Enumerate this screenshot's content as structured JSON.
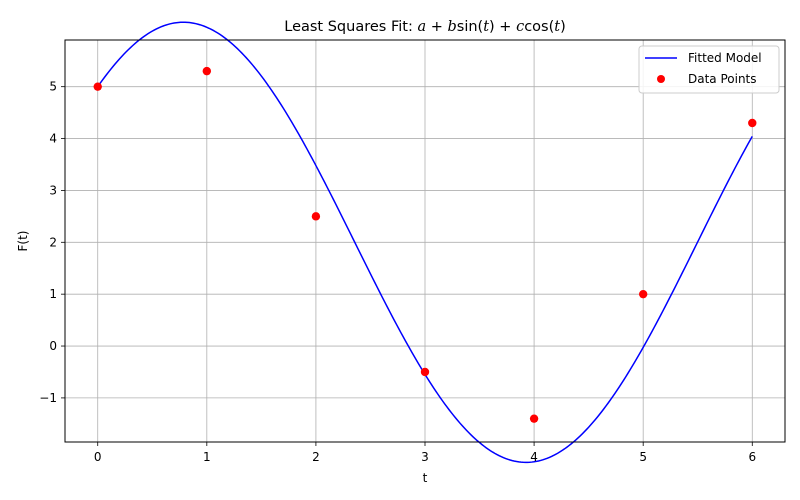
{
  "chart_data": {
    "type": "line",
    "title": {
      "prefix": "Least Squares Fit: ",
      "formula": [
        "a",
        " + ",
        "b",
        "sin(",
        "t",
        ") + ",
        "c",
        "cos(",
        "t",
        ")"
      ]
    },
    "xlabel": "t",
    "ylabel": "F(t)",
    "xlim": [
      -0.3,
      6.3
    ],
    "ylim": [
      -1.85,
      5.9
    ],
    "xticks": [
      0,
      1,
      2,
      3,
      4,
      5,
      6
    ],
    "yticks": [
      -1,
      0,
      1,
      2,
      3,
      4,
      5
    ],
    "yticklabels": [
      "−1",
      "0",
      "1",
      "2",
      "3",
      "4",
      "5"
    ],
    "grid": true,
    "legend_position": "top-right",
    "model": {
      "a": 2.0,
      "b": 3.0,
      "c": 3.0
    },
    "series": [
      {
        "name": "Fitted Model",
        "kind": "line",
        "color": "#0000ff"
      },
      {
        "name": "Data Points",
        "kind": "scatter",
        "color": "#ff0000",
        "x": [
          0,
          1,
          2,
          3,
          4,
          5,
          6
        ],
        "y": [
          5.0,
          5.3,
          2.5,
          -0.5,
          -1.4,
          1.0,
          4.3
        ]
      }
    ]
  }
}
